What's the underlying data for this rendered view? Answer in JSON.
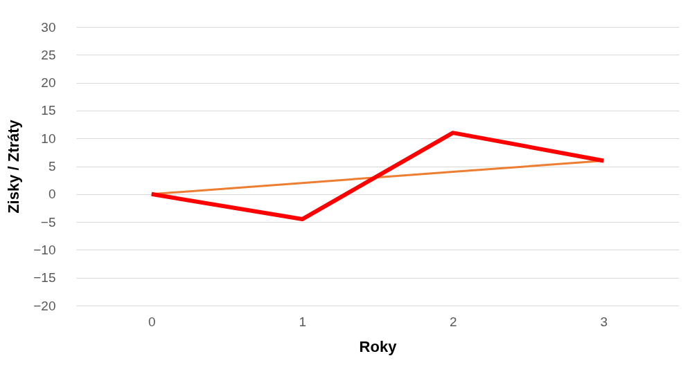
{
  "chart_data": {
    "type": "line",
    "xlabel": "Roky",
    "ylabel": "Zisky / Ztráty",
    "categories": [
      "0",
      "1",
      "2",
      "3"
    ],
    "series": [
      {
        "color": "#ed7d31",
        "values": [
          0,
          2,
          4,
          6
        ]
      },
      {
        "color": "#ff0000",
        "values": [
          0,
          -4.5,
          11,
          6
        ]
      }
    ],
    "ylim": [
      -20,
      30
    ],
    "yticks": [
      -20,
      -15,
      -10,
      -5,
      0,
      5,
      10,
      15,
      20,
      25,
      30
    ],
    "grid": "y",
    "marker": "none",
    "line_style": "solid"
  }
}
